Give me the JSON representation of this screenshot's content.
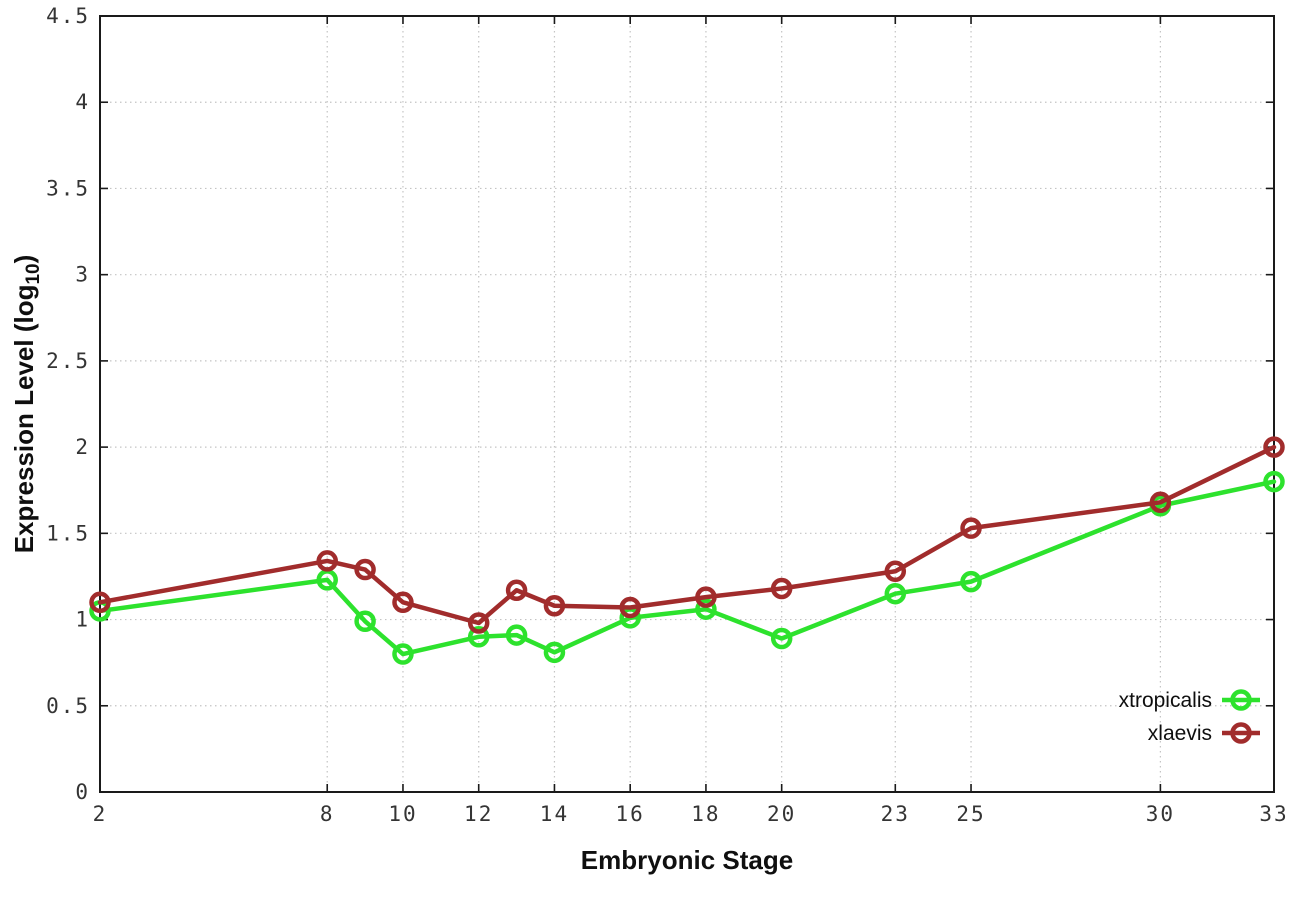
{
  "chart_data": {
    "type": "line",
    "title": "",
    "xlabel": "Embryonic Stage",
    "ylabel": {
      "text": "Expression Level (log",
      "sub": "10",
      "suffix": ")"
    },
    "xlim": [
      2,
      33
    ],
    "ylim": [
      0,
      4.5
    ],
    "grid": true,
    "legend_position": "inside bottom-right",
    "x": [
      2,
      8,
      9,
      10,
      12,
      13,
      14,
      16,
      18,
      20,
      23,
      25,
      30,
      33
    ],
    "xticks": {
      "values": [
        2,
        8,
        10,
        12,
        14,
        16,
        18,
        20,
        23,
        25,
        30,
        33
      ],
      "labels": [
        "2",
        "8",
        "10",
        "12",
        "14",
        "16",
        "18",
        "20",
        "23",
        "25",
        "30",
        "33"
      ]
    },
    "yticks": {
      "values": [
        0,
        0.5,
        1,
        1.5,
        2,
        2.5,
        3,
        3.5,
        4,
        4.5
      ],
      "labels": [
        "0",
        "0.5",
        "1",
        "1.5",
        "2",
        "2.5",
        "3",
        "3.5",
        "4",
        "4.5"
      ]
    },
    "series": [
      {
        "name": "xtropicalis",
        "color": "#2de22d",
        "marker": "open-circle",
        "values": [
          1.05,
          1.23,
          0.99,
          0.8,
          0.9,
          0.91,
          0.81,
          1.01,
          1.06,
          0.89,
          1.15,
          1.22,
          1.66,
          1.8
        ]
      },
      {
        "name": "xlaevis",
        "color": "#a12c2c",
        "marker": "open-circle",
        "values": [
          1.1,
          1.34,
          1.29,
          1.1,
          0.98,
          1.17,
          1.08,
          1.07,
          1.13,
          1.18,
          1.28,
          1.53,
          1.68,
          2.0
        ]
      }
    ],
    "style": {
      "grid_color": "#c4c4c4",
      "border_color": "#1a1a1a",
      "tick_text_color": "#343434",
      "line_width": 4.5,
      "marker_radius": 8.5
    }
  }
}
